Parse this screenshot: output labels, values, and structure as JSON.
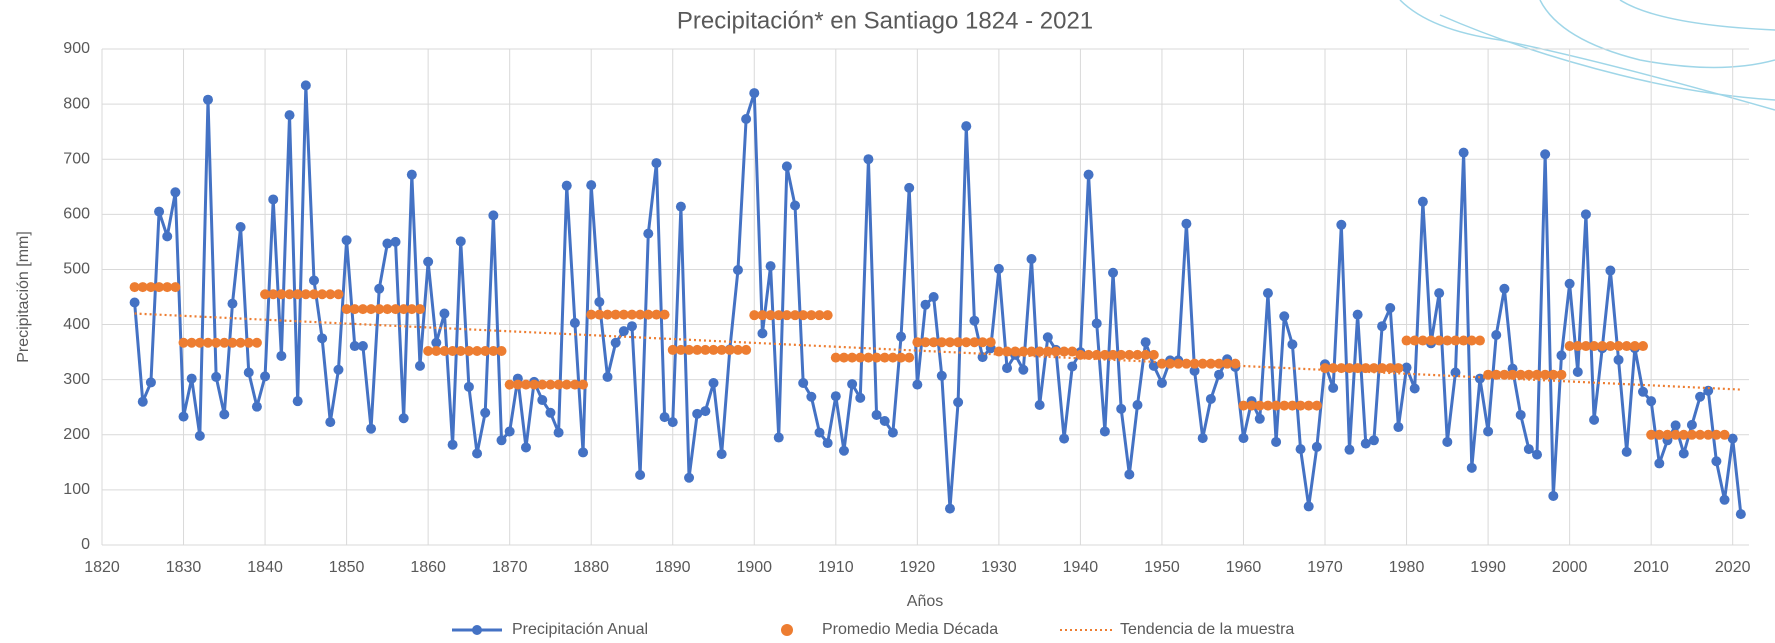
{
  "chart_data": {
    "type": "line",
    "title": "Precipitación* en Santiago 1824 - 2021",
    "x_label": "Años",
    "y_label": "Precipitación [mm]",
    "x": [
      1824,
      1825,
      1826,
      1827,
      1828,
      1829,
      1830,
      1831,
      1832,
      1833,
      1834,
      1835,
      1836,
      1837,
      1838,
      1839,
      1840,
      1841,
      1842,
      1843,
      1844,
      1845,
      1846,
      1847,
      1848,
      1849,
      1850,
      1851,
      1852,
      1853,
      1854,
      1855,
      1856,
      1857,
      1858,
      1859,
      1860,
      1861,
      1862,
      1863,
      1864,
      1865,
      1866,
      1867,
      1868,
      1869,
      1870,
      1871,
      1872,
      1873,
      1874,
      1875,
      1876,
      1877,
      1878,
      1879,
      1880,
      1881,
      1882,
      1883,
      1884,
      1885,
      1886,
      1887,
      1888,
      1889,
      1890,
      1891,
      1892,
      1893,
      1894,
      1895,
      1896,
      1897,
      1898,
      1899,
      1900,
      1901,
      1902,
      1903,
      1904,
      1905,
      1906,
      1907,
      1908,
      1909,
      1910,
      1911,
      1912,
      1913,
      1914,
      1915,
      1916,
      1917,
      1918,
      1919,
      1920,
      1921,
      1922,
      1923,
      1924,
      1925,
      1926,
      1927,
      1928,
      1929,
      1930,
      1931,
      1932,
      1933,
      1934,
      1935,
      1936,
      1937,
      1938,
      1939,
      1940,
      1941,
      1942,
      1943,
      1944,
      1945,
      1946,
      1947,
      1948,
      1949,
      1950,
      1951,
      1952,
      1953,
      1954,
      1955,
      1956,
      1957,
      1958,
      1959,
      1960,
      1961,
      1962,
      1963,
      1964,
      1965,
      1966,
      1967,
      1968,
      1969,
      1970,
      1971,
      1972,
      1973,
      1974,
      1975,
      1976,
      1977,
      1978,
      1979,
      1980,
      1981,
      1982,
      1983,
      1984,
      1985,
      1986,
      1987,
      1988,
      1989,
      1990,
      1991,
      1992,
      1993,
      1994,
      1995,
      1996,
      1997,
      1998,
      1999,
      2000,
      2001,
      2002,
      2003,
      2004,
      2005,
      2006,
      2007,
      2008,
      2009,
      2010,
      2011,
      2012,
      2013,
      2014,
      2015,
      2016,
      2017,
      2018,
      2019,
      2020,
      2021
    ],
    "series": [
      {
        "name": "Precipitación Anual",
        "color": "#4472c4",
        "style": "line-marker",
        "values": [
          440,
          260,
          295,
          605,
          560,
          640,
          233,
          302,
          198,
          808,
          305,
          237,
          438,
          577,
          313,
          251,
          306,
          627,
          343,
          780,
          261,
          834,
          480,
          375,
          223,
          318,
          553,
          361,
          361,
          211,
          465,
          547,
          550,
          230,
          672,
          325,
          514,
          367,
          420,
          182,
          551,
          287,
          166,
          240,
          598,
          190,
          206,
          302,
          177,
          296,
          263,
          240,
          204,
          652,
          403,
          168,
          653,
          441,
          305,
          367,
          388,
          397,
          127,
          565,
          693,
          232,
          223,
          614,
          122,
          238,
          243,
          294,
          165,
          355,
          499,
          773,
          820,
          384,
          506,
          195,
          687,
          616,
          294,
          269,
          204,
          185,
          270,
          171,
          292,
          267,
          700,
          236,
          225,
          204,
          378,
          648,
          291,
          436,
          450,
          307,
          66,
          259,
          760,
          407,
          341,
          357,
          501,
          321,
          345,
          318,
          519,
          254,
          377,
          354,
          193,
          324,
          350,
          672,
          402,
          206,
          494,
          247,
          128,
          254,
          368,
          325,
          294,
          335,
          335,
          583,
          316,
          194,
          265,
          309,
          337,
          323,
          194,
          261,
          229,
          457,
          187,
          415,
          364,
          174,
          70,
          178,
          328,
          285,
          581,
          173,
          418,
          184,
          190,
          397,
          430,
          214,
          322,
          284,
          623,
          366,
          457,
          187,
          313,
          712,
          140,
          302,
          206,
          381,
          465,
          320,
          236,
          174,
          164,
          709,
          89,
          344,
          474,
          314,
          600,
          227,
          357,
          498,
          336,
          169,
          357,
          278,
          261,
          148,
          190,
          217,
          166,
          218,
          269,
          280,
          152,
          82,
          193,
          56
        ]
      },
      {
        "name": "Promedio Media Década",
        "color": "#ed7d31",
        "style": "marker",
        "values": [
          468,
          468,
          468,
          468,
          468,
          468,
          367,
          367,
          367,
          367,
          367,
          367,
          367,
          367,
          367,
          367,
          455,
          455,
          455,
          455,
          455,
          455,
          455,
          455,
          455,
          455,
          428,
          428,
          428,
          428,
          428,
          428,
          428,
          428,
          428,
          428,
          352,
          352,
          352,
          352,
          352,
          352,
          352,
          352,
          352,
          352,
          291,
          291,
          291,
          291,
          291,
          291,
          291,
          291,
          291,
          291,
          418,
          418,
          418,
          418,
          418,
          418,
          418,
          418,
          418,
          418,
          354,
          354,
          354,
          354,
          354,
          354,
          354,
          354,
          354,
          354,
          417,
          417,
          417,
          417,
          417,
          417,
          417,
          417,
          417,
          417,
          340,
          340,
          340,
          340,
          340,
          340,
          340,
          340,
          340,
          340,
          368,
          368,
          368,
          368,
          368,
          368,
          368,
          368,
          368,
          368,
          351,
          351,
          351,
          351,
          351,
          351,
          351,
          351,
          351,
          351,
          345,
          345,
          345,
          345,
          345,
          345,
          345,
          345,
          345,
          345,
          329,
          329,
          329,
          329,
          329,
          329,
          329,
          329,
          329,
          329,
          253,
          253,
          253,
          253,
          253,
          253,
          253,
          253,
          253,
          253,
          321,
          321,
          321,
          321,
          321,
          321,
          321,
          321,
          321,
          321,
          371,
          371,
          371,
          371,
          371,
          371,
          371,
          371,
          371,
          371,
          309,
          309,
          309,
          309,
          309,
          309,
          309,
          309,
          309,
          309,
          361,
          361,
          361,
          361,
          361,
          361,
          361,
          361,
          361,
          361,
          200,
          200,
          200,
          200,
          200,
          200,
          200,
          200,
          200,
          200,
          null,
          null
        ]
      },
      {
        "name": "Tendencia de la muestra",
        "color": "#ed7d31",
        "style": "dotted",
        "x": [
          1824,
          2021
        ],
        "values": [
          420,
          282
        ]
      }
    ],
    "xlim": [
      1820,
      2022
    ],
    "xticks": [
      1820,
      1830,
      1840,
      1850,
      1860,
      1870,
      1880,
      1890,
      1900,
      1910,
      1920,
      1930,
      1940,
      1950,
      1960,
      1970,
      1980,
      1990,
      2000,
      2010,
      2020
    ],
    "ylim": [
      0,
      900
    ],
    "yticks": [
      0,
      100,
      200,
      300,
      400,
      500,
      600,
      700,
      800,
      900
    ],
    "grid": true,
    "legend": "bottom"
  }
}
